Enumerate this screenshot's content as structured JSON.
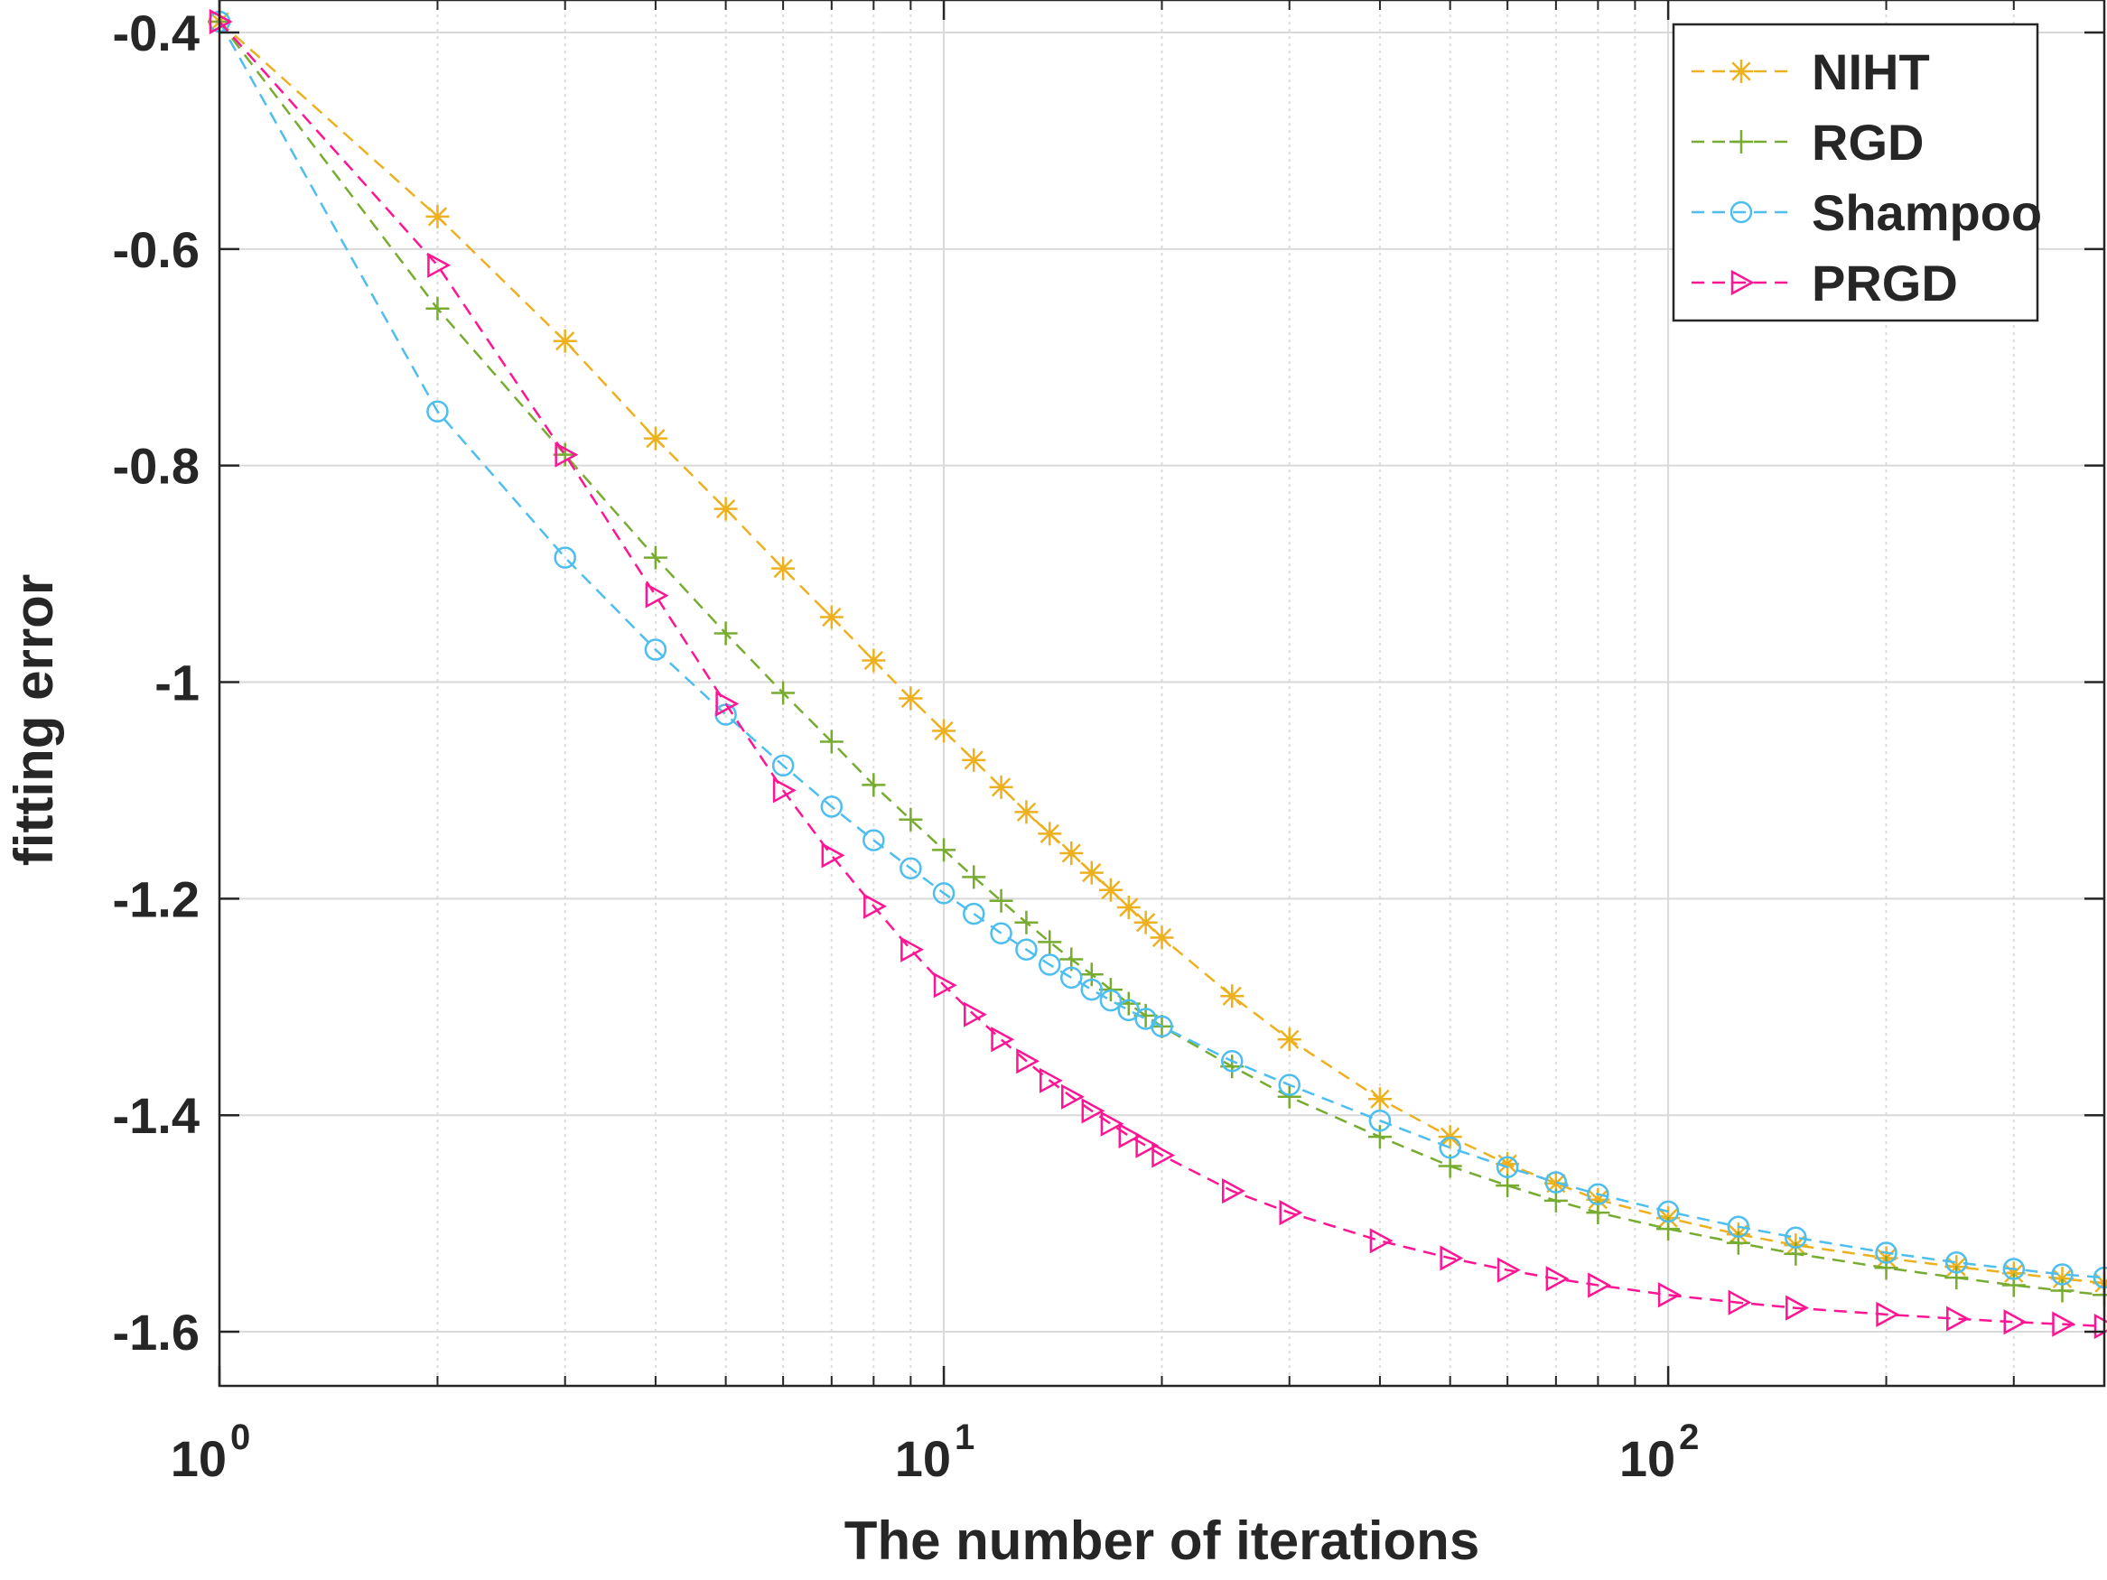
{
  "chart_data": {
    "type": "line",
    "xlabel": "The number of iterations",
    "ylabel": "fitting error",
    "xscale": "log",
    "xlim": [
      1,
      400
    ],
    "ylim": [
      -1.65,
      -0.37
    ],
    "grid": true,
    "minor_grid_x": true,
    "legend_position": "top-right",
    "x_ticks": [
      {
        "base": "10",
        "exp": "0"
      },
      {
        "base": "10",
        "exp": "1"
      },
      {
        "base": "10",
        "exp": "2"
      }
    ],
    "y_tick_values": [
      -0.4,
      -0.6,
      -0.8,
      -1,
      -1.2,
      -1.4,
      -1.6
    ],
    "y_tick_labels": [
      "-0.4",
      "-0.6",
      "-0.8",
      "-1",
      "-1.2",
      "-1.4",
      "-1.6"
    ],
    "series": [
      {
        "name": "NIHT",
        "color": "#EDB120",
        "marker": "asterisk",
        "line_style": "dashed",
        "x": [
          1,
          2,
          3,
          4,
          5,
          6,
          7,
          8,
          9,
          10,
          11,
          12,
          13,
          14,
          15,
          16,
          17,
          18,
          19,
          20,
          25,
          30,
          40,
          50,
          60,
          70,
          80,
          100,
          125,
          150,
          200,
          250,
          300,
          350,
          400
        ],
        "y": [
          -0.39,
          -0.57,
          -0.685,
          -0.775,
          -0.84,
          -0.895,
          -0.94,
          -0.98,
          -1.015,
          -1.045,
          -1.072,
          -1.097,
          -1.12,
          -1.14,
          -1.158,
          -1.176,
          -1.192,
          -1.208,
          -1.222,
          -1.236,
          -1.29,
          -1.33,
          -1.385,
          -1.42,
          -1.445,
          -1.463,
          -1.478,
          -1.495,
          -1.51,
          -1.52,
          -1.532,
          -1.54,
          -1.546,
          -1.551,
          -1.555
        ]
      },
      {
        "name": "RGD",
        "color": "#77AC30",
        "marker": "plus",
        "line_style": "dashed",
        "x": [
          1,
          2,
          3,
          4,
          5,
          6,
          7,
          8,
          9,
          10,
          11,
          12,
          13,
          14,
          15,
          16,
          17,
          18,
          19,
          20,
          25,
          30,
          40,
          50,
          60,
          70,
          80,
          100,
          125,
          150,
          200,
          250,
          300,
          350,
          400
        ],
        "y": [
          -0.39,
          -0.655,
          -0.79,
          -0.885,
          -0.955,
          -1.01,
          -1.055,
          -1.095,
          -1.127,
          -1.155,
          -1.18,
          -1.202,
          -1.222,
          -1.24,
          -1.256,
          -1.27,
          -1.284,
          -1.297,
          -1.308,
          -1.318,
          -1.355,
          -1.383,
          -1.42,
          -1.447,
          -1.465,
          -1.479,
          -1.49,
          -1.505,
          -1.518,
          -1.528,
          -1.541,
          -1.55,
          -1.557,
          -1.562,
          -1.566
        ]
      },
      {
        "name": "Shampoo",
        "color": "#4DBEEE",
        "marker": "circle",
        "line_style": "dashed",
        "x": [
          1,
          2,
          3,
          4,
          5,
          6,
          7,
          8,
          9,
          10,
          11,
          12,
          13,
          14,
          15,
          16,
          17,
          18,
          19,
          20,
          25,
          30,
          40,
          50,
          60,
          70,
          80,
          100,
          125,
          150,
          200,
          250,
          300,
          350,
          400
        ],
        "y": [
          -0.39,
          -0.75,
          -0.885,
          -0.97,
          -1.03,
          -1.077,
          -1.115,
          -1.146,
          -1.172,
          -1.195,
          -1.214,
          -1.232,
          -1.247,
          -1.261,
          -1.273,
          -1.284,
          -1.294,
          -1.303,
          -1.311,
          -1.318,
          -1.35,
          -1.372,
          -1.405,
          -1.43,
          -1.448,
          -1.462,
          -1.473,
          -1.489,
          -1.503,
          -1.513,
          -1.527,
          -1.536,
          -1.542,
          -1.547,
          -1.55
        ]
      },
      {
        "name": "PRGD",
        "color": "#FF1493",
        "marker": "triangle-right",
        "line_style": "dashed",
        "x": [
          1,
          2,
          3,
          4,
          5,
          6,
          7,
          8,
          9,
          10,
          11,
          12,
          13,
          14,
          15,
          16,
          17,
          18,
          19,
          20,
          25,
          30,
          40,
          50,
          60,
          70,
          80,
          100,
          125,
          150,
          200,
          250,
          300,
          350,
          400
        ],
        "y": [
          -0.39,
          -0.615,
          -0.79,
          -0.92,
          -1.02,
          -1.1,
          -1.16,
          -1.207,
          -1.247,
          -1.28,
          -1.307,
          -1.33,
          -1.35,
          -1.368,
          -1.383,
          -1.396,
          -1.408,
          -1.419,
          -1.428,
          -1.437,
          -1.47,
          -1.49,
          -1.516,
          -1.532,
          -1.543,
          -1.551,
          -1.557,
          -1.566,
          -1.573,
          -1.578,
          -1.584,
          -1.588,
          -1.591,
          -1.593,
          -1.595
        ]
      }
    ]
  }
}
